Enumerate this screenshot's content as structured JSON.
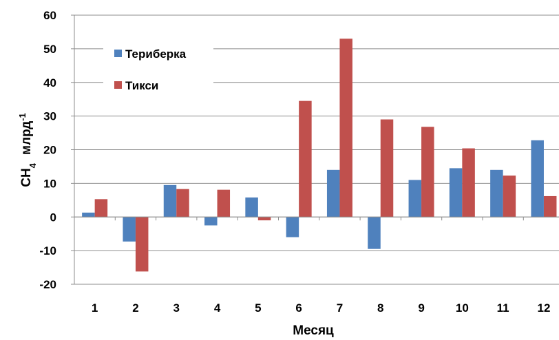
{
  "chart_data": {
    "type": "bar",
    "categories": [
      "1",
      "2",
      "3",
      "4",
      "5",
      "6",
      "7",
      "8",
      "9",
      "10",
      "11",
      "12"
    ],
    "series": [
      {
        "name": "Териберка",
        "color": "#4f81bd",
        "values": [
          1.3,
          -7.3,
          9.5,
          -2.5,
          5.8,
          -6.0,
          14.0,
          -9.5,
          11.0,
          14.5,
          14.0,
          22.8
        ]
      },
      {
        "name": "Тикси",
        "color": "#c0504d",
        "values": [
          5.3,
          -16.2,
          8.3,
          8.1,
          -1.0,
          34.5,
          53.0,
          29.0,
          26.8,
          20.4,
          12.3,
          6.2
        ]
      }
    ],
    "xlabel": "Месяц",
    "ylabel": {
      "base": "CH",
      "sub": "4",
      "unit": "млрд",
      "sup": "-1"
    },
    "ylim": [
      -20,
      60
    ],
    "yticks": [
      -20,
      -10,
      0,
      10,
      20,
      30,
      40,
      50,
      60
    ],
    "grid": true,
    "legend_position": "top-left"
  }
}
